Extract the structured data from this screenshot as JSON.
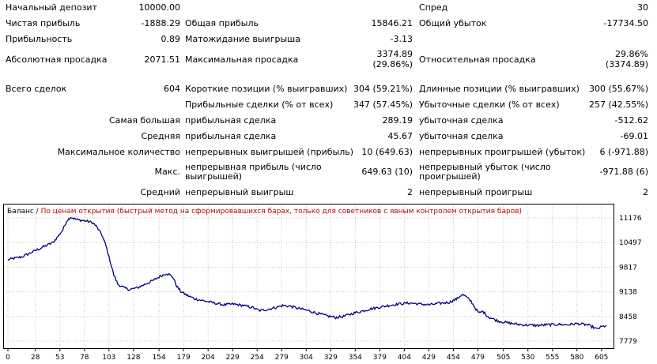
{
  "stats": {
    "initial_deposit": {
      "label": "Начальный депозит",
      "value": "10000.00"
    },
    "spread": {
      "label": "Спред",
      "value": "30"
    },
    "net_profit": {
      "label": "Чистая прибыль",
      "value": "-1888.29"
    },
    "gross_profit": {
      "label": "Общая прибыль",
      "value": "15846.21"
    },
    "gross_loss": {
      "label": "Общий убыток",
      "value": "-17734.50"
    },
    "profit_factor": {
      "label": "Прибыльность",
      "value": "0.89"
    },
    "expected_payoff": {
      "label": "Матожидание выигрыша",
      "value": "-3.13"
    },
    "abs_drawdown": {
      "label": "Абсолютная просадка",
      "value": "2071.51"
    },
    "max_drawdown": {
      "label": "Максимальная просадка",
      "value_line1": "3374.89",
      "value_line2": "(29.86%)"
    },
    "rel_drawdown": {
      "label": "Относительная просадка",
      "value_line1": "29.86%",
      "value_line2": "(3374.89)"
    },
    "total_trades": {
      "label": "Всего сделок",
      "value": "604"
    },
    "short_positions": {
      "label": "Короткие позиции (% выигравших)",
      "value": "304 (59.21%)"
    },
    "long_positions": {
      "label": "Длинные позиции (% выигравших)",
      "value": "300 (55.67%)"
    },
    "profit_trades": {
      "label": "Прибыльные сделки (% от всех)",
      "value": "347 (57.45%)"
    },
    "loss_trades": {
      "label": "Убыточные сделки (% от всех)",
      "value": "257 (42.55%)"
    },
    "largest": {
      "label": "Самая большая",
      "profit_label": "прибыльная сделка",
      "profit_value": "289.19",
      "loss_label": "убыточная сделка",
      "loss_value": "-512.62"
    },
    "average": {
      "label": "Средняя",
      "profit_label": "прибыльная сделка",
      "profit_value": "45.67",
      "loss_label": "убыточная сделка",
      "loss_value": "-69.01"
    },
    "max_count": {
      "label": "Максимальное количество",
      "wins_label": "непрерывных выигрышей (прибыль)",
      "wins_value": "10 (649.63)",
      "losses_label": "непрерывных проигрышей (убыток)",
      "losses_value": "6 (-971.88)"
    },
    "max_amount": {
      "label": "Макс.",
      "wins_label": "непрерывная прибыль (число выигрышей)",
      "wins_value": "649.63 (10)",
      "losses_label": "непрерывный убыток (число проигрышей)",
      "losses_value": "-971.88 (6)"
    },
    "avg_consecutive": {
      "label": "Средний",
      "wins_label": "непрерывный выигрыш",
      "wins_value": "2",
      "losses_label": "непрерывный проигрыш",
      "losses_value": "2"
    }
  },
  "chart_data": {
    "type": "line",
    "legend_series": "Баланс",
    "legend_separator": " / ",
    "legend_note": "По ценам открытия (быстрый метод на сформировавшихся барах, только для советников с явным контролем открытия баров)",
    "series_color": "#000080",
    "note_color": "#c00000",
    "x_ticks": [
      "0",
      "28",
      "53",
      "78",
      "103",
      "128",
      "154",
      "179",
      "204",
      "229",
      "254",
      "279",
      "304",
      "329",
      "354",
      "379",
      "404",
      "429",
      "454",
      "479",
      "505",
      "530",
      "555",
      "580",
      "605"
    ],
    "y_ticks": [
      "11176",
      "10497",
      "9817",
      "9138",
      "8458",
      "7779"
    ],
    "xlim": [
      0,
      614
    ],
    "ylim": [
      7779,
      11176
    ],
    "grid": true,
    "anchors": [
      [
        0,
        10020
      ],
      [
        6,
        10060
      ],
      [
        14,
        10100
      ],
      [
        22,
        10200
      ],
      [
        30,
        10300
      ],
      [
        38,
        10400
      ],
      [
        46,
        10500
      ],
      [
        52,
        10700
      ],
      [
        56,
        10850
      ],
      [
        60,
        11100
      ],
      [
        64,
        11200
      ],
      [
        70,
        11130
      ],
      [
        78,
        11100
      ],
      [
        86,
        11050
      ],
      [
        90,
        10950
      ],
      [
        96,
        10700
      ],
      [
        100,
        10400
      ],
      [
        104,
        10000
      ],
      [
        108,
        9600
      ],
      [
        112,
        9350
      ],
      [
        118,
        9250
      ],
      [
        124,
        9200
      ],
      [
        132,
        9250
      ],
      [
        140,
        9350
      ],
      [
        148,
        9450
      ],
      [
        156,
        9580
      ],
      [
        162,
        9650
      ],
      [
        168,
        9550
      ],
      [
        172,
        9300
      ],
      [
        176,
        9150
      ],
      [
        182,
        9050
      ],
      [
        190,
        8950
      ],
      [
        198,
        8900
      ],
      [
        210,
        8830
      ],
      [
        220,
        8780
      ],
      [
        230,
        8800
      ],
      [
        240,
        8760
      ],
      [
        250,
        8700
      ],
      [
        256,
        8620
      ],
      [
        264,
        8650
      ],
      [
        272,
        8700
      ],
      [
        280,
        8760
      ],
      [
        288,
        8740
      ],
      [
        296,
        8680
      ],
      [
        306,
        8620
      ],
      [
        316,
        8540
      ],
      [
        326,
        8470
      ],
      [
        334,
        8430
      ],
      [
        342,
        8460
      ],
      [
        350,
        8530
      ],
      [
        360,
        8600
      ],
      [
        370,
        8670
      ],
      [
        380,
        8720
      ],
      [
        390,
        8770
      ],
      [
        400,
        8810
      ],
      [
        410,
        8830
      ],
      [
        420,
        8800
      ],
      [
        430,
        8780
      ],
      [
        440,
        8820
      ],
      [
        450,
        8850
      ],
      [
        458,
        8950
      ],
      [
        463,
        9070
      ],
      [
        467,
        9000
      ],
      [
        472,
        8880
      ],
      [
        476,
        8700
      ],
      [
        480,
        8550
      ],
      [
        484,
        8600
      ],
      [
        490,
        8440
      ],
      [
        500,
        8330
      ],
      [
        510,
        8280
      ],
      [
        520,
        8240
      ],
      [
        530,
        8220
      ],
      [
        540,
        8210
      ],
      [
        550,
        8230
      ],
      [
        560,
        8240
      ],
      [
        570,
        8230
      ],
      [
        580,
        8260
      ],
      [
        590,
        8230
      ],
      [
        596,
        8170
      ],
      [
        600,
        8110
      ],
      [
        605,
        8170
      ],
      [
        610,
        8210
      ]
    ]
  }
}
